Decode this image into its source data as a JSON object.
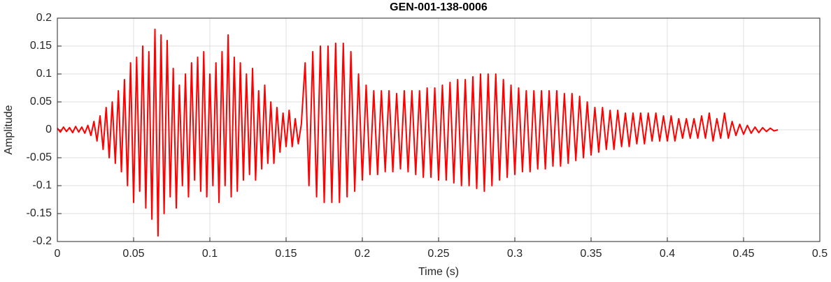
{
  "chart_data": {
    "type": "line",
    "title": "GEN-001-138-0006",
    "x_label": "Time (s)",
    "y_label": "Amplitude",
    "grid": true,
    "xlim": [
      0,
      0.5
    ],
    "ylim": [
      -0.2,
      0.2
    ],
    "xticks": [
      0,
      0.05,
      0.1,
      0.15,
      0.2,
      0.25,
      0.3,
      0.35,
      0.4,
      0.45,
      0.5
    ],
    "yticks": [
      -0.2,
      -0.15,
      -0.1,
      -0.05,
      0,
      0.05,
      0.1,
      0.15,
      0.2
    ],
    "series": [
      {
        "color": "#ff0000",
        "x": [
          0,
          0.002,
          0.004,
          0.006,
          0.008,
          0.01,
          0.012,
          0.014,
          0.016,
          0.018,
          0.02,
          0.022,
          0.024,
          0.026,
          0.028,
          0.03,
          0.032,
          0.034,
          0.036,
          0.038,
          0.04,
          0.042,
          0.044,
          0.046,
          0.048,
          0.05,
          0.052,
          0.054,
          0.056,
          0.058,
          0.06,
          0.062,
          0.064,
          0.066,
          0.068,
          0.07,
          0.072,
          0.074,
          0.076,
          0.078,
          0.08,
          0.082,
          0.084,
          0.086,
          0.088,
          0.09,
          0.092,
          0.094,
          0.096,
          0.098,
          0.1,
          0.102,
          0.104,
          0.106,
          0.108,
          0.11,
          0.112,
          0.114,
          0.116,
          0.118,
          0.12,
          0.122,
          0.124,
          0.126,
          0.128,
          0.13,
          0.132,
          0.134,
          0.136,
          0.138,
          0.14,
          0.142,
          0.144,
          0.146,
          0.148,
          0.15,
          0.152,
          0.154,
          0.156,
          0.158,
          0.16,
          0.1625,
          0.165,
          0.1675,
          0.17,
          0.1725,
          0.175,
          0.1775,
          0.18,
          0.1825,
          0.185,
          0.1875,
          0.19,
          0.1925,
          0.195,
          0.1975,
          0.2,
          0.2025,
          0.205,
          0.2075,
          0.21,
          0.2125,
          0.215,
          0.2175,
          0.22,
          0.2225,
          0.225,
          0.2275,
          0.23,
          0.2325,
          0.235,
          0.2375,
          0.24,
          0.2425,
          0.245,
          0.2475,
          0.25,
          0.2525,
          0.255,
          0.2575,
          0.26,
          0.2625,
          0.265,
          0.2675,
          0.27,
          0.2725,
          0.275,
          0.2775,
          0.28,
          0.2825,
          0.285,
          0.2875,
          0.29,
          0.2925,
          0.295,
          0.2975,
          0.3,
          0.3025,
          0.305,
          0.3075,
          0.31,
          0.3125,
          0.315,
          0.3175,
          0.32,
          0.3225,
          0.325,
          0.3275,
          0.33,
          0.3325,
          0.335,
          0.3375,
          0.34,
          0.3425,
          0.345,
          0.3475,
          0.35,
          0.3525,
          0.355,
          0.3575,
          0.36,
          0.3625,
          0.365,
          0.3675,
          0.37,
          0.3725,
          0.375,
          0.3775,
          0.38,
          0.3825,
          0.385,
          0.3875,
          0.39,
          0.3925,
          0.395,
          0.3975,
          0.4,
          0.4025,
          0.405,
          0.4075,
          0.41,
          0.4125,
          0.415,
          0.4175,
          0.42,
          0.4225,
          0.425,
          0.4275,
          0.43,
          0.4325,
          0.435,
          0.4375,
          0.44,
          0.4425,
          0.445,
          0.4475,
          0.45,
          0.4525,
          0.455,
          0.4575,
          0.46,
          0.4625,
          0.465,
          0.4675,
          0.47,
          0.4725
        ],
        "values": [
          0.003,
          -0.004,
          0.005,
          -0.003,
          0.004,
          -0.005,
          0.006,
          -0.004,
          0.005,
          -0.006,
          0.008,
          -0.01,
          0.015,
          -0.02,
          0.025,
          -0.035,
          0.04,
          -0.05,
          0.05,
          -0.06,
          0.07,
          -0.075,
          0.09,
          -0.1,
          0.12,
          -0.13,
          0.13,
          -0.11,
          0.15,
          -0.14,
          0.14,
          -0.16,
          0.18,
          -0.19,
          0.17,
          -0.15,
          0.16,
          -0.12,
          0.11,
          -0.14,
          0.08,
          -0.1,
          0.1,
          -0.12,
          0.12,
          -0.09,
          0.13,
          -0.11,
          0.14,
          -0.12,
          0.1,
          -0.1,
          0.12,
          -0.13,
          0.14,
          -0.1,
          0.17,
          -0.12,
          0.13,
          -0.11,
          0.12,
          -0.09,
          0.1,
          -0.08,
          0.11,
          -0.09,
          0.07,
          -0.07,
          0.08,
          -0.06,
          0.05,
          -0.06,
          0.04,
          -0.04,
          0.03,
          -0.03,
          0.035,
          -0.03,
          0.02,
          -0.025,
          0.01,
          0.12,
          -0.1,
          0.14,
          -0.12,
          0.15,
          -0.13,
          0.15,
          -0.13,
          0.155,
          -0.13,
          0.155,
          -0.12,
          0.14,
          -0.11,
          0.1,
          -0.09,
          0.08,
          -0.08,
          0.07,
          -0.08,
          0.07,
          -0.075,
          0.07,
          -0.075,
          0.065,
          -0.07,
          0.07,
          -0.075,
          0.07,
          -0.08,
          0.07,
          -0.085,
          0.075,
          -0.085,
          0.075,
          -0.09,
          0.08,
          -0.09,
          0.085,
          -0.095,
          0.09,
          -0.1,
          0.09,
          -0.1,
          0.095,
          -0.105,
          0.1,
          -0.11,
          0.1,
          -0.1,
          0.1,
          -0.09,
          0.09,
          -0.085,
          0.08,
          -0.08,
          0.075,
          -0.075,
          0.07,
          -0.075,
          0.07,
          -0.07,
          0.07,
          -0.07,
          0.07,
          -0.065,
          0.07,
          -0.065,
          0.065,
          -0.06,
          0.065,
          -0.055,
          0.06,
          -0.05,
          0.05,
          -0.045,
          0.04,
          -0.04,
          0.04,
          -0.035,
          0.035,
          -0.035,
          0.035,
          -0.03,
          0.03,
          -0.03,
          0.03,
          -0.025,
          0.03,
          -0.025,
          0.03,
          -0.02,
          0.03,
          -0.02,
          0.025,
          -0.02,
          0.025,
          -0.02,
          0.02,
          -0.015,
          0.02,
          -0.015,
          0.02,
          -0.015,
          0.025,
          -0.015,
          0.03,
          -0.02,
          0.02,
          -0.015,
          0.03,
          -0.015,
          0.015,
          -0.01,
          0.01,
          -0.008,
          0.008,
          -0.006,
          0.005,
          -0.005,
          0.004,
          -0.003,
          0.003,
          -0.002,
          0.0
        ]
      }
    ]
  }
}
